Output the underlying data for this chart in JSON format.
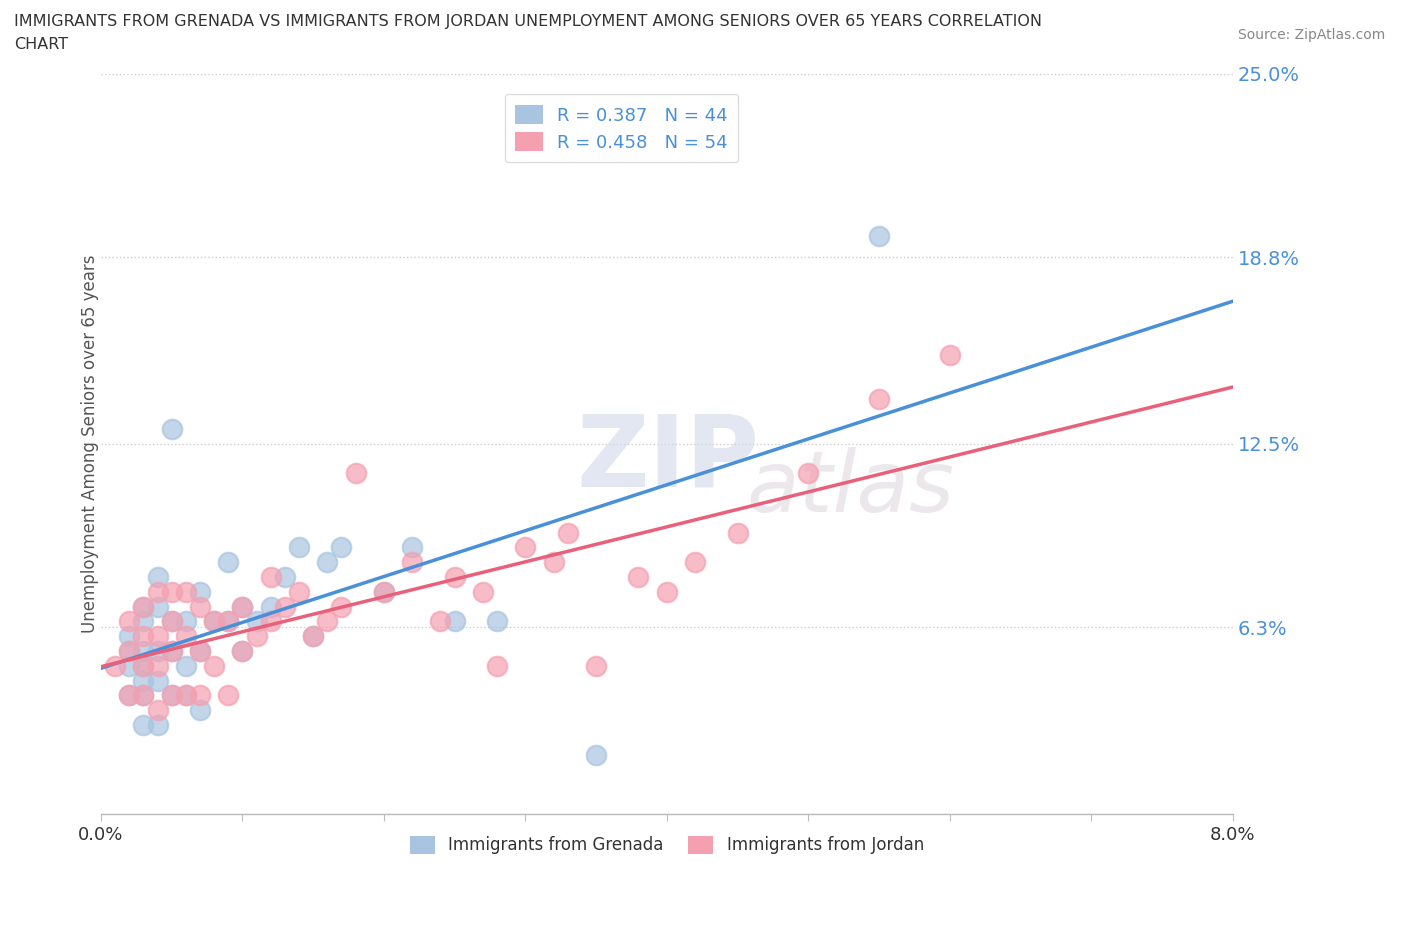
{
  "title_line1": "IMMIGRANTS FROM GRENADA VS IMMIGRANTS FROM JORDAN UNEMPLOYMENT AMONG SENIORS OVER 65 YEARS CORRELATION",
  "title_line2": "CHART",
  "source": "Source: ZipAtlas.com",
  "ylabel": "Unemployment Among Seniors over 65 years",
  "xlim": [
    0.0,
    0.08
  ],
  "ylim": [
    0.0,
    0.25
  ],
  "yticks": [
    0.0,
    0.063,
    0.125,
    0.188,
    0.25
  ],
  "ytick_labels": [
    "",
    "6.3%",
    "12.5%",
    "18.8%",
    "25.0%"
  ],
  "xtick_left": "0.0%",
  "xtick_right": "8.0%",
  "grenada_color": "#a8c4e0",
  "jordan_color": "#f4a0b0",
  "grenada_R": 0.387,
  "grenada_N": 44,
  "jordan_R": 0.458,
  "jordan_N": 54,
  "trend_blue": "#4a90d9",
  "trend_pink": "#e8607a",
  "watermark_zip": "ZIP",
  "watermark_atlas": "atlas",
  "legend_label_grenada": "Immigrants from Grenada",
  "legend_label_jordan": "Immigrants from Jordan",
  "tick_color": "#4a90d9",
  "grenada_x": [
    0.002,
    0.002,
    0.002,
    0.002,
    0.003,
    0.003,
    0.003,
    0.003,
    0.003,
    0.003,
    0.003,
    0.004,
    0.004,
    0.004,
    0.004,
    0.004,
    0.005,
    0.005,
    0.005,
    0.005,
    0.006,
    0.006,
    0.006,
    0.007,
    0.007,
    0.007,
    0.008,
    0.009,
    0.009,
    0.01,
    0.01,
    0.011,
    0.012,
    0.013,
    0.014,
    0.015,
    0.016,
    0.017,
    0.02,
    0.022,
    0.025,
    0.028,
    0.035,
    0.055
  ],
  "grenada_y": [
    0.04,
    0.05,
    0.055,
    0.06,
    0.03,
    0.04,
    0.045,
    0.05,
    0.055,
    0.065,
    0.07,
    0.03,
    0.045,
    0.055,
    0.07,
    0.08,
    0.04,
    0.055,
    0.065,
    0.13,
    0.04,
    0.05,
    0.065,
    0.035,
    0.055,
    0.075,
    0.065,
    0.065,
    0.085,
    0.055,
    0.07,
    0.065,
    0.07,
    0.08,
    0.09,
    0.06,
    0.085,
    0.09,
    0.075,
    0.09,
    0.065,
    0.065,
    0.02,
    0.195
  ],
  "jordan_x": [
    0.001,
    0.002,
    0.002,
    0.002,
    0.003,
    0.003,
    0.003,
    0.003,
    0.004,
    0.004,
    0.004,
    0.004,
    0.005,
    0.005,
    0.005,
    0.005,
    0.006,
    0.006,
    0.006,
    0.007,
    0.007,
    0.007,
    0.008,
    0.008,
    0.009,
    0.009,
    0.01,
    0.01,
    0.011,
    0.012,
    0.012,
    0.013,
    0.014,
    0.015,
    0.016,
    0.017,
    0.018,
    0.02,
    0.022,
    0.024,
    0.025,
    0.027,
    0.028,
    0.03,
    0.032,
    0.033,
    0.035,
    0.038,
    0.04,
    0.042,
    0.045,
    0.05,
    0.055,
    0.06
  ],
  "jordan_y": [
    0.05,
    0.04,
    0.055,
    0.065,
    0.04,
    0.05,
    0.06,
    0.07,
    0.035,
    0.05,
    0.06,
    0.075,
    0.04,
    0.055,
    0.065,
    0.075,
    0.04,
    0.06,
    0.075,
    0.04,
    0.055,
    0.07,
    0.05,
    0.065,
    0.04,
    0.065,
    0.055,
    0.07,
    0.06,
    0.065,
    0.08,
    0.07,
    0.075,
    0.06,
    0.065,
    0.07,
    0.115,
    0.075,
    0.085,
    0.065,
    0.08,
    0.075,
    0.05,
    0.09,
    0.085,
    0.095,
    0.05,
    0.08,
    0.075,
    0.085,
    0.095,
    0.115,
    0.14,
    0.155
  ]
}
